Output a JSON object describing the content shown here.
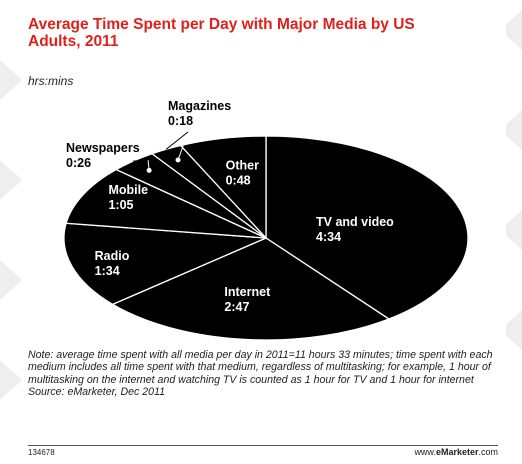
{
  "chart_data": {
    "type": "pie",
    "title": "Average Time Spent per Day with Major Media by US Adults, 2011",
    "subtitle": "hrs:mins",
    "slices": [
      {
        "label": "TV and video",
        "value_text": "4:34",
        "minutes": 274
      },
      {
        "label": "Internet",
        "value_text": "2:47",
        "minutes": 167
      },
      {
        "label": "Radio",
        "value_text": "1:34",
        "minutes": 94
      },
      {
        "label": "Mobile",
        "value_text": "1:05",
        "minutes": 65
      },
      {
        "label": "Newspapers",
        "value_text": "0:26",
        "minutes": 26
      },
      {
        "label": "Magazines",
        "value_text": "0:18",
        "minutes": 18
      },
      {
        "label": "Other",
        "value_text": "0:48",
        "minutes": 48
      }
    ]
  },
  "note": "Note: average time spent with all media per day in 2011=11 hours 33 minutes; time spent with each medium includes all time spent with that medium, regardless of multitasking; for example, 1 hour of multitasking on the internet and watching TV is counted as 1 hour for TV and 1 hour for internet",
  "source": "Source: eMarketer, Dec 2011",
  "chart_id": "134678",
  "brand": {
    "prefix": "www.",
    "name": "eMarketer",
    "suffix": ".com"
  },
  "colors": {
    "title": "#e0201b",
    "slice": "#000000",
    "label": "#ffffff"
  }
}
